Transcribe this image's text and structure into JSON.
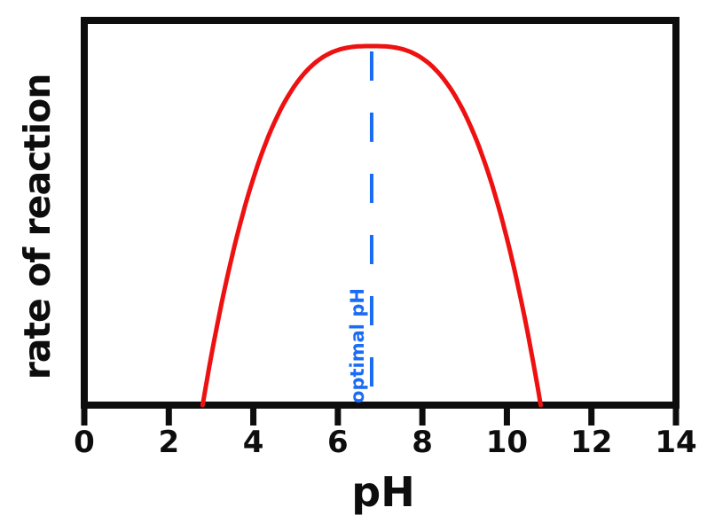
{
  "figure": {
    "background": "#ffffff"
  },
  "chart_data": {
    "type": "line",
    "title": "",
    "xlabel": "pH",
    "ylabel": "rate of reaction",
    "x_ticks": [
      "0",
      "2",
      "4",
      "6",
      "8",
      "10",
      "12",
      "14"
    ],
    "xlim": [
      0,
      14
    ],
    "ylim_shown": false,
    "grid": false,
    "legend": false,
    "annotation": {
      "label": "optimal pH",
      "ph": 6.8,
      "style": "dashed-vertical-line"
    },
    "curve": {
      "name": "reaction rate vs pH",
      "ph_zero_left": 2.8,
      "ph_optimal": 6.8,
      "ph_zero_right": 10.8,
      "shape_exponent": 2.8,
      "points": [
        [
          2.8,
          0.0
        ],
        [
          3.0,
          0.14
        ],
        [
          3.5,
          0.44
        ],
        [
          4.0,
          0.66
        ],
        [
          4.5,
          0.81
        ],
        [
          5.0,
          0.91
        ],
        [
          5.5,
          0.97
        ],
        [
          6.0,
          0.99
        ],
        [
          6.5,
          1.0
        ],
        [
          6.8,
          1.0
        ],
        [
          7.0,
          1.0
        ],
        [
          7.5,
          0.99
        ],
        [
          8.0,
          0.97
        ],
        [
          8.5,
          0.91
        ],
        [
          9.0,
          0.81
        ],
        [
          9.5,
          0.66
        ],
        [
          10.0,
          0.44
        ],
        [
          10.5,
          0.14
        ],
        [
          10.8,
          0.0
        ]
      ]
    },
    "colors": {
      "curve": "#ee1111",
      "optimal": "#1b6cf5",
      "axis": "#0d0d0d"
    }
  }
}
